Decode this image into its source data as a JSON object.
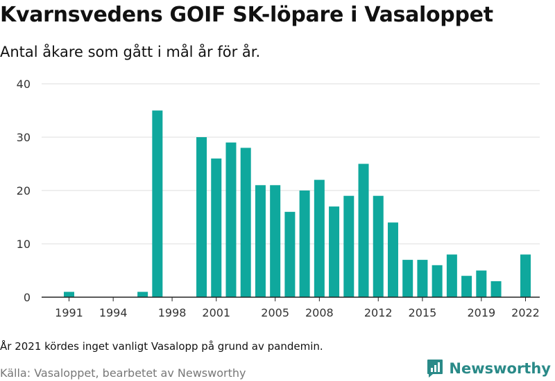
{
  "header": {
    "title": "Kvarnsvedens GOIF SK-löpare i Vasaloppet",
    "subtitle": "Antal åkare som gått i mål år för år."
  },
  "footer": {
    "note": "År 2021 kördes inget vanligt Vasalopp på grund av pandemin.",
    "source": "Källa: Vasaloppet, bearbetet av Newsworthy",
    "brand": "Newsworthy",
    "brand_icon": "newsworthy-logo-icon",
    "brand_color": "#2a8a88"
  },
  "chart_data": {
    "type": "bar",
    "title": "Kvarnsvedens GOIF SK-löpare i Vasaloppet",
    "subtitle": "Antal åkare som gått i mål år för år.",
    "xlabel": "",
    "ylabel": "",
    "x": [
      1991,
      1992,
      1993,
      1994,
      1995,
      1996,
      1997,
      1998,
      1999,
      2000,
      2001,
      2002,
      2003,
      2004,
      2005,
      2006,
      2007,
      2008,
      2009,
      2010,
      2011,
      2012,
      2013,
      2014,
      2015,
      2016,
      2017,
      2018,
      2019,
      2020,
      2021,
      2022
    ],
    "values": [
      1,
      0,
      0,
      0,
      0,
      1,
      35,
      0,
      0,
      30,
      26,
      29,
      28,
      21,
      21,
      16,
      20,
      22,
      17,
      19,
      25,
      19,
      14,
      7,
      7,
      6,
      8,
      4,
      5,
      3,
      0,
      8
    ],
    "x_tick_labels": [
      "1991",
      "1994",
      "1998",
      "2001",
      "2005",
      "2008",
      "2012",
      "2015",
      "2019",
      "2022"
    ],
    "y_ticks": [
      0,
      10,
      20,
      30,
      40
    ],
    "ylim": [
      0,
      40
    ],
    "grid": true,
    "bar_color": "#0fa89d"
  }
}
